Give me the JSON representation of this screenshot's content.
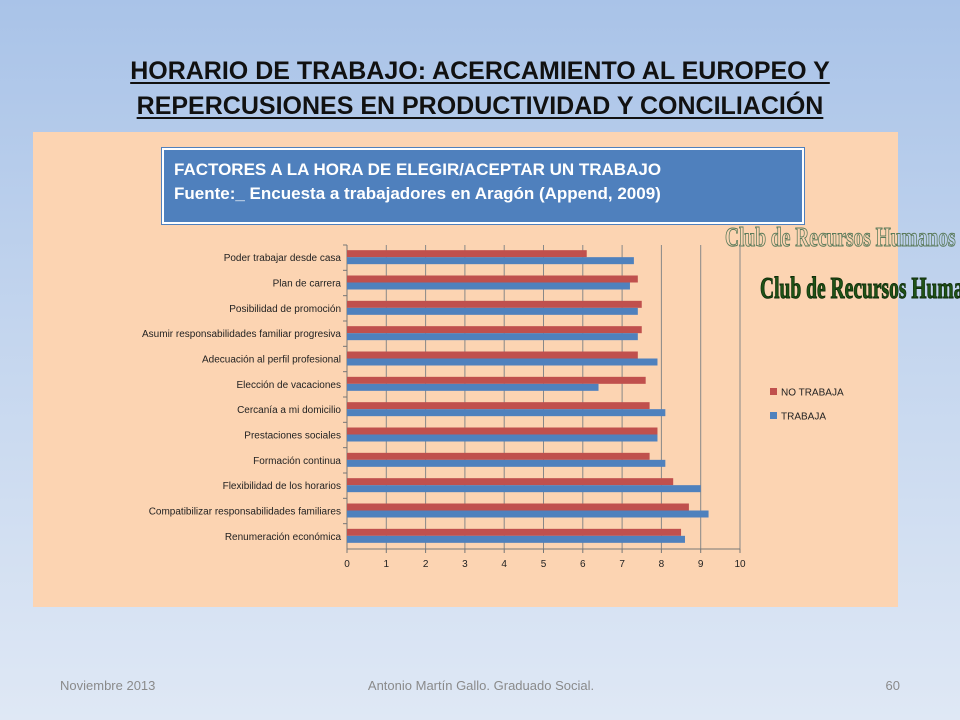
{
  "slide": {
    "title_line1": "HORARIO DE TRABAJO: ACERCAMIENTO AL EUROPEO Y",
    "title_line2": "REPERCUSIONES EN PRODUCTIVIDAD Y CONCILIACIÓN",
    "chart_heading_line1": "FACTORES A LA HORA DE ELEGIR/ACEPTAR UN TRABAJO",
    "chart_heading_line2": "Fuente:_ Encuesta a trabajadores en Aragón (Append, 2009)",
    "watermark": "Club de Recursos Humanos",
    "footer_date": "Noviembre 2013",
    "footer_author": "Antonio Martín Gallo. Graduado Social.",
    "page_number": "60"
  },
  "colors": {
    "no_trabaja": "#c0504d",
    "trabaja": "#4f81bd",
    "panel": "#fcd4b2",
    "heading_box": "#4f80bd",
    "gridline": "#888888"
  },
  "chart_data": {
    "type": "bar",
    "orientation": "horizontal",
    "categories": [
      "Poder trabajar desde casa",
      "Plan de carrera",
      "Posibilidad de promoción",
      "Asumir responsabilidades familiar progresiva",
      "Adecuación al perfil profesional",
      "Elección de vacaciones",
      "Cercanía a mi domicilio",
      "Prestaciones sociales",
      "Formación continua",
      "Flexibilidad de los horarios",
      "Compatibilizar responsabilidades familiares",
      "Renumeración económica"
    ],
    "series": [
      {
        "name": "NO TRABAJA",
        "values": [
          6.1,
          7.4,
          7.5,
          7.5,
          7.4,
          7.6,
          7.7,
          7.9,
          7.7,
          8.3,
          8.7,
          8.5
        ]
      },
      {
        "name": "TRABAJA",
        "values": [
          7.3,
          7.2,
          7.4,
          7.4,
          7.9,
          6.4,
          8.1,
          7.9,
          8.1,
          9.0,
          9.2,
          8.6
        ]
      }
    ],
    "xlim": [
      0,
      10
    ],
    "xticks": [
      "0",
      "1",
      "2",
      "3",
      "4",
      "5",
      "6",
      "7",
      "8",
      "9",
      "10"
    ],
    "grid": true,
    "legend_position": "right"
  }
}
